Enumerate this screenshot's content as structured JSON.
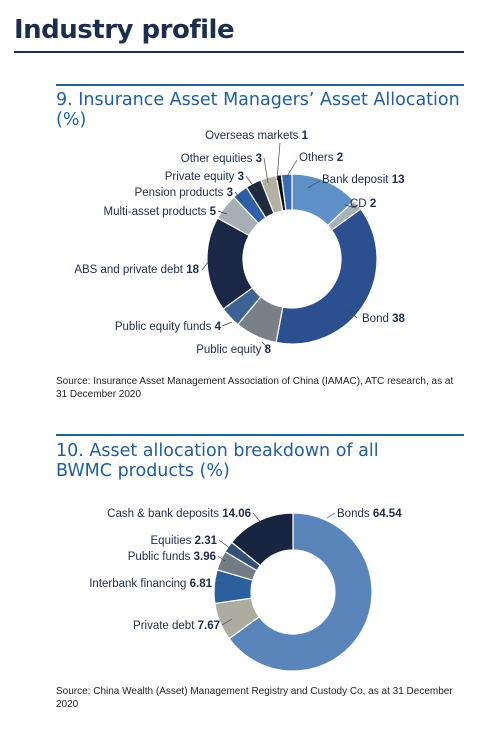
{
  "header": {
    "title": "Industry profile"
  },
  "chart_data": [
    {
      "type": "pie",
      "title": "9. Insurance Asset Managers’ Asset Allocation (%)",
      "source": "Source: Insurance Asset Management Association of China (IAMAC), ATC research, as at 31 December 2020",
      "slices": [
        {
          "label": "Bank deposit",
          "value": 13,
          "color": "#5e8fc6"
        },
        {
          "label": "CD",
          "value": 2,
          "color": "#a7b1b9"
        },
        {
          "label": "Bond",
          "value": 38,
          "color": "#2b4f8f"
        },
        {
          "label": "Public equity",
          "value": 8,
          "color": "#7b8087"
        },
        {
          "label": "Public equity funds",
          "value": 4,
          "color": "#3d6394"
        },
        {
          "label": "ABS and private debt",
          "value": 18,
          "color": "#1a2747"
        },
        {
          "label": "Multi-asset products",
          "value": 5,
          "color": "#a8aeb5"
        },
        {
          "label": "Pension products",
          "value": 3,
          "color": "#2f5fa8"
        },
        {
          "label": "Private equity",
          "value": 3,
          "color": "#1e2a3e"
        },
        {
          "label": "Other equities",
          "value": 3,
          "color": "#b5b0a4"
        },
        {
          "label": "Overseas markets",
          "value": 1,
          "color": "#0b0f18"
        },
        {
          "label": "Others",
          "value": 2,
          "color": "#3b6ab8"
        }
      ]
    },
    {
      "type": "pie",
      "title": "10. Asset allocation breakdown of all BWMC products (%)",
      "source": "Source: China Wealth (Asset) Management Registry and Custody Co, as at 31 December 2020",
      "slices": [
        {
          "label": "Bonds",
          "value": 64.54,
          "color": "#5a85bb"
        },
        {
          "label": "Private debt",
          "value": 7.67,
          "color": "#acaca0"
        },
        {
          "label": "Interbank financing",
          "value": 6.81,
          "color": "#2c5f9c"
        },
        {
          "label": "Public funds",
          "value": 3.96,
          "color": "#727c86"
        },
        {
          "label": "Equities",
          "value": 2.31,
          "color": "#33507a"
        },
        {
          "label": "Cash & bank deposits",
          "value": 14.06,
          "color": "#182540"
        }
      ]
    }
  ]
}
